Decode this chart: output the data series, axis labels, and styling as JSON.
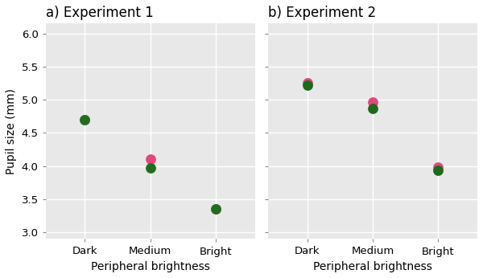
{
  "exp1": {
    "title": "a) Experiment 1",
    "categories": [
      "Dark",
      "Medium",
      "Bright"
    ],
    "series_green": {
      "values": [
        4.7,
        3.97,
        3.36
      ],
      "color": "#1f6e1f",
      "zorder": 4
    },
    "series_pink": {
      "values": [
        4.7,
        4.1,
        3.36
      ],
      "color": "#e8457a",
      "zorder": 3
    }
  },
  "exp2": {
    "title": "b) Experiment 2",
    "categories": [
      "Dark",
      "Medium",
      "Bright"
    ],
    "series_green": {
      "values": [
        5.22,
        4.87,
        3.93
      ],
      "color": "#1a6b1a",
      "zorder": 4
    },
    "series_pink": {
      "values": [
        5.26,
        4.97,
        3.98
      ],
      "color": "#e8457a",
      "zorder": 3
    }
  },
  "ylim": [
    2.9,
    6.15
  ],
  "yticks": [
    3.0,
    3.5,
    4.0,
    4.5,
    5.0,
    5.5,
    6.0
  ],
  "xlabel": "Peripheral brightness",
  "ylabel": "Pupil size (mm)",
  "plot_bg_color": "#e8e8e8",
  "fig_bg_color": "#ffffff",
  "marker_size": 85,
  "title_fontsize": 12,
  "label_fontsize": 10,
  "tick_fontsize": 9.5,
  "grid_color": "#ffffff",
  "grid_linewidth": 1.0
}
